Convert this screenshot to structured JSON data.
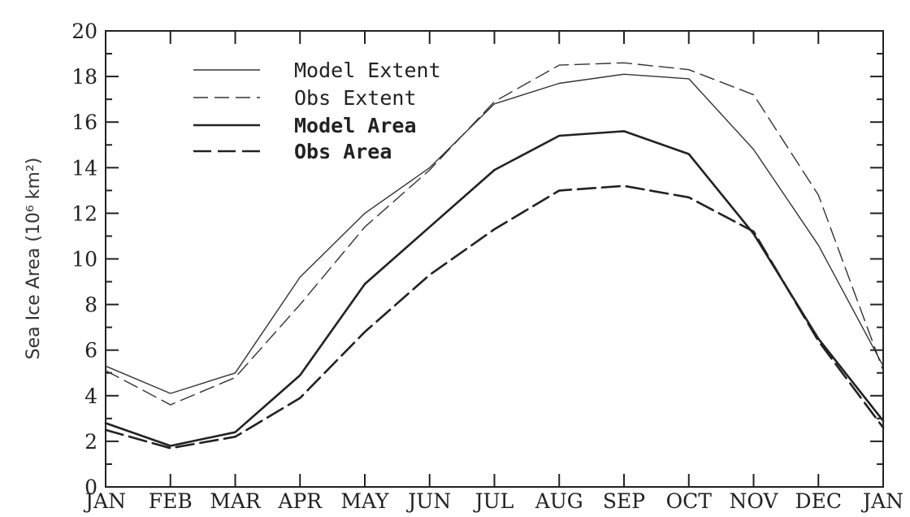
{
  "chart_data": {
    "type": "line",
    "title": "",
    "xlabel": "",
    "ylabel": "Sea Ice Area (10⁶ km²)",
    "categories": [
      "JAN",
      "FEB",
      "MAR",
      "APR",
      "MAY",
      "JUN",
      "JUL",
      "AUG",
      "SEP",
      "OCT",
      "NOV",
      "DEC",
      "JAN"
    ],
    "ylim": [
      0,
      20
    ],
    "yticks": [
      "0",
      "2",
      "4",
      "6",
      "8",
      "10",
      "12",
      "14",
      "16",
      "18",
      "20"
    ],
    "grid": false,
    "legend_position": "top-left",
    "series": [
      {
        "name": "Model Extent",
        "style": "solid",
        "weight": "thin",
        "color": "#333333",
        "values": [
          5.3,
          4.1,
          5.0,
          9.2,
          12.0,
          14.0,
          16.8,
          17.7,
          18.1,
          17.9,
          14.8,
          10.6,
          5.3
        ]
      },
      {
        "name": "Obs Extent",
        "style": "dashed",
        "weight": "thin",
        "color": "#333333",
        "values": [
          5.1,
          3.6,
          4.8,
          8.0,
          11.4,
          13.9,
          16.9,
          18.5,
          18.6,
          18.3,
          17.2,
          12.8,
          5.1
        ]
      },
      {
        "name": "Model Area",
        "style": "solid",
        "weight": "thick",
        "color": "#222222",
        "values": [
          2.8,
          1.8,
          2.4,
          4.9,
          8.9,
          11.4,
          13.9,
          15.4,
          15.6,
          14.6,
          11.1,
          6.5,
          2.9
        ]
      },
      {
        "name": "Obs Area",
        "style": "dashed",
        "weight": "thick",
        "color": "#222222",
        "values": [
          2.5,
          1.7,
          2.2,
          3.9,
          6.8,
          9.3,
          11.3,
          13.0,
          13.2,
          12.7,
          11.2,
          6.4,
          2.6
        ]
      }
    ]
  }
}
